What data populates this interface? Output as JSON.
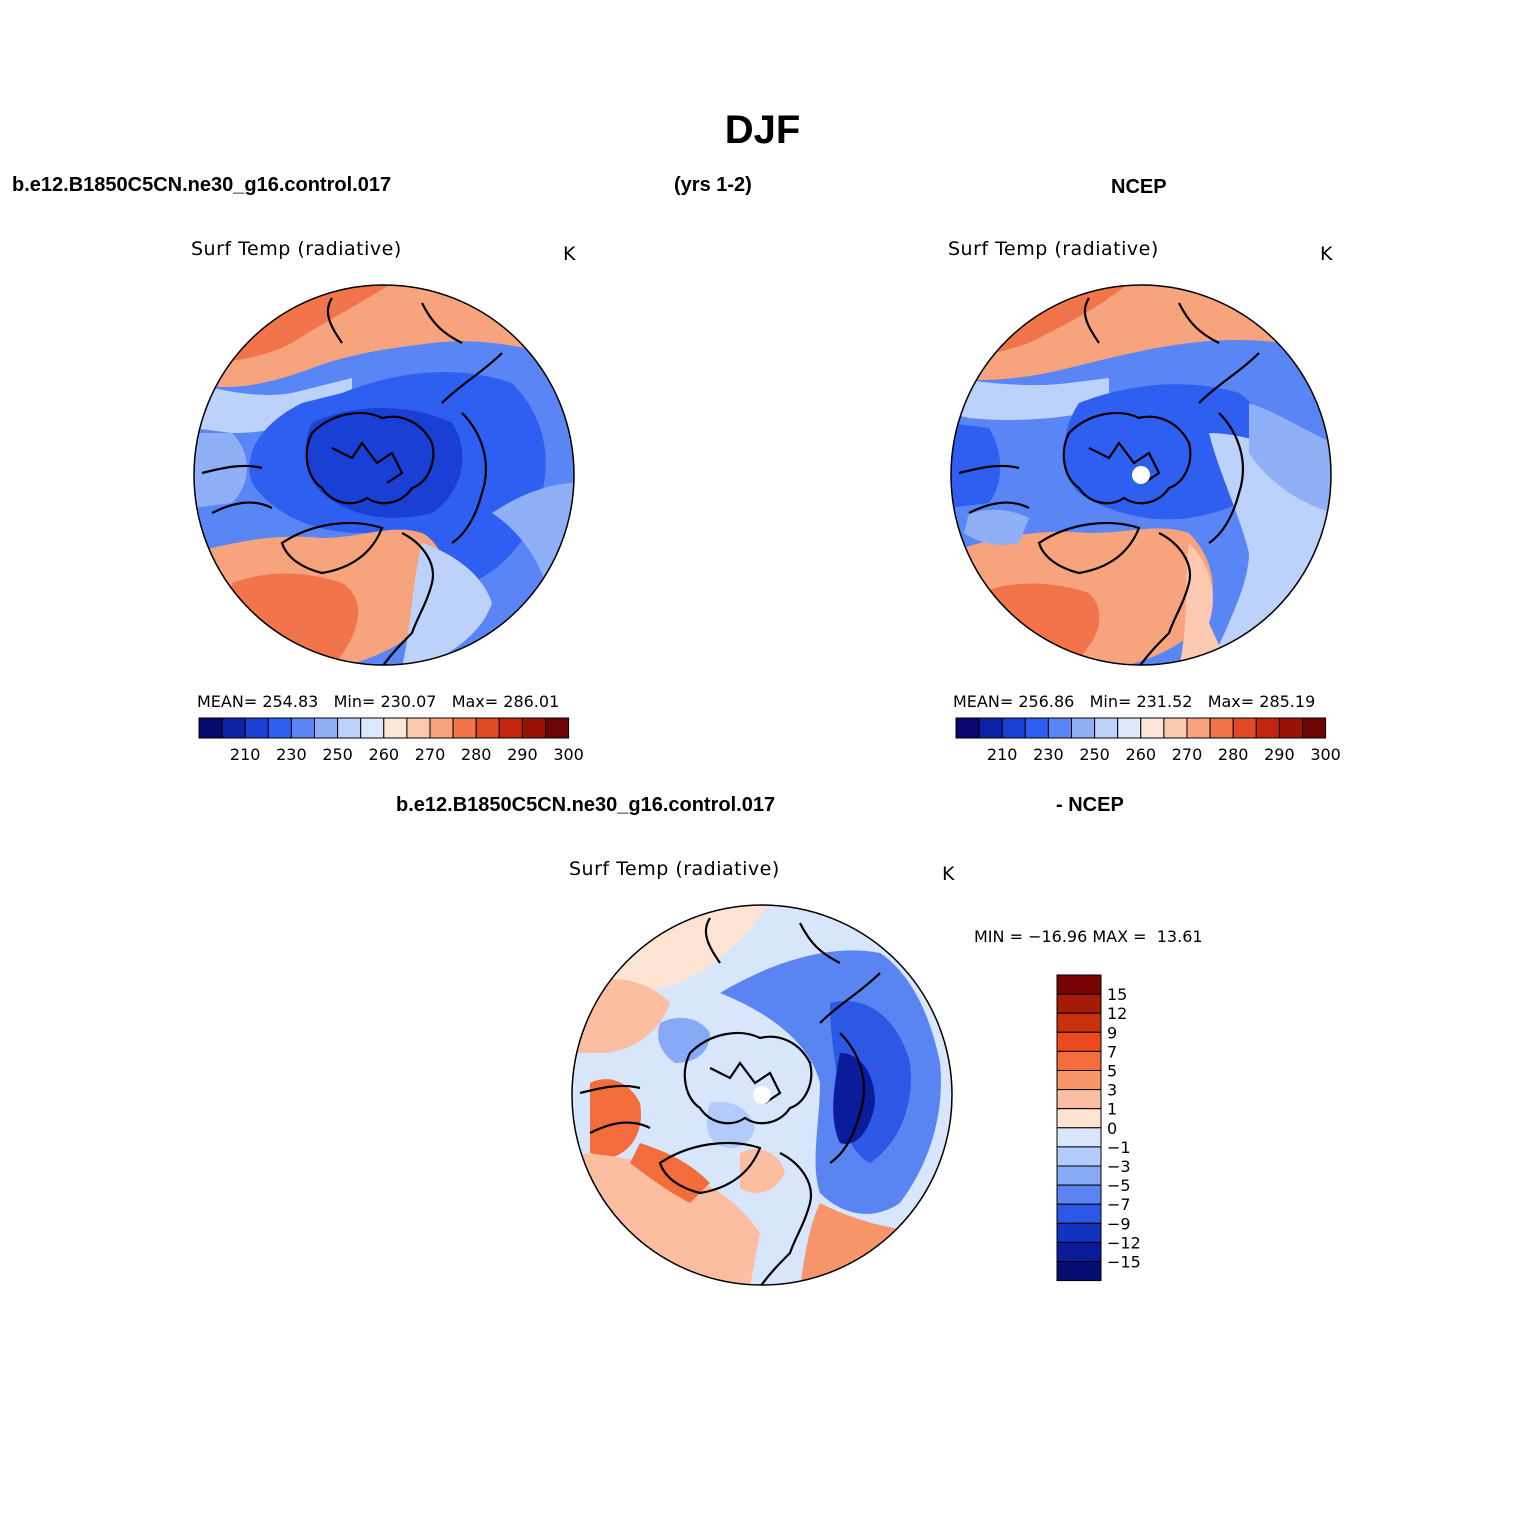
{
  "figure": {
    "title": "DJF",
    "case_name": "b.e12.B1850C5CN.ne30_g16.control.017",
    "years": "(yrs 1-2)",
    "obs_name": "NCEP",
    "diff_case_name": "b.e12.B1850C5CN.ne30_g16.control.017",
    "diff_obs_name": "- NCEP"
  },
  "panels": {
    "model": {
      "variable": "Surf Temp (radiative)",
      "units": "K",
      "stats_text": "MEAN= 254.83   Min= 230.07   Max= 286.01"
    },
    "obs": {
      "variable": "Surf Temp (radiative)",
      "units": "K",
      "stats_text": "MEAN= 256.86   Min= 231.52   Max= 285.19"
    },
    "diff": {
      "variable": "Surf Temp (radiative)",
      "units": "K",
      "stats_text": "MIN = −16.96 MAX =  13.61"
    }
  },
  "chart_data": [
    {
      "type": "heatmap",
      "projection": "north-polar-stereographic",
      "title": "Surf Temp (radiative)",
      "units": "K",
      "mean": 254.83,
      "min": 230.07,
      "max": 286.01,
      "colorbar_ticks": [
        "210",
        "230",
        "250",
        "260",
        "270",
        "280",
        "290",
        "300"
      ],
      "colorbar_colors": [
        "#08086e",
        "#0c23a8",
        "#1a3fd4",
        "#2f5ff0",
        "#5a86f5",
        "#8fb0f7",
        "#bcd2fb",
        "#dce9fc",
        "#fde6d8",
        "#fbc8b0",
        "#f7a47e",
        "#f2744a",
        "#e24a26",
        "#c5260f",
        "#9a1206",
        "#6e0505"
      ],
      "legend_placement": "bottom"
    },
    {
      "type": "heatmap",
      "projection": "north-polar-stereographic",
      "title": "Surf Temp (radiative)",
      "units": "K",
      "mean": 256.86,
      "min": 231.52,
      "max": 285.19,
      "colorbar_ticks": [
        "210",
        "230",
        "250",
        "260",
        "270",
        "280",
        "290",
        "300"
      ],
      "colorbar_colors": [
        "#08086e",
        "#0c23a8",
        "#1a3fd4",
        "#2f5ff0",
        "#5a86f5",
        "#8fb0f7",
        "#bcd2fb",
        "#dce9fc",
        "#fde6d8",
        "#fbc8b0",
        "#f7a47e",
        "#f2744a",
        "#e24a26",
        "#c5260f",
        "#9a1206",
        "#6e0505"
      ],
      "legend_placement": "bottom"
    },
    {
      "type": "heatmap",
      "projection": "north-polar-stereographic",
      "title": "Surf Temp (radiative)",
      "units": "K",
      "min": -16.96,
      "max": 13.61,
      "colorbar_levels": [
        "15",
        "12",
        "9",
        "7",
        "5",
        "3",
        "1",
        "0",
        "−1",
        "−3",
        "−5",
        "−7",
        "−9",
        "−12",
        "−15"
      ],
      "colorbar_colors": [
        "#7a0404",
        "#a51b08",
        "#c9300c",
        "#ea4a1c",
        "#f26c3c",
        "#f7966a",
        "#fbbea0",
        "#fde4d2",
        "#d8e6fb",
        "#b2cbfa",
        "#88aaf6",
        "#5a84f2",
        "#2d58e6",
        "#1232c2",
        "#0a1c9a",
        "#050d70"
      ],
      "legend_placement": "right"
    }
  ]
}
